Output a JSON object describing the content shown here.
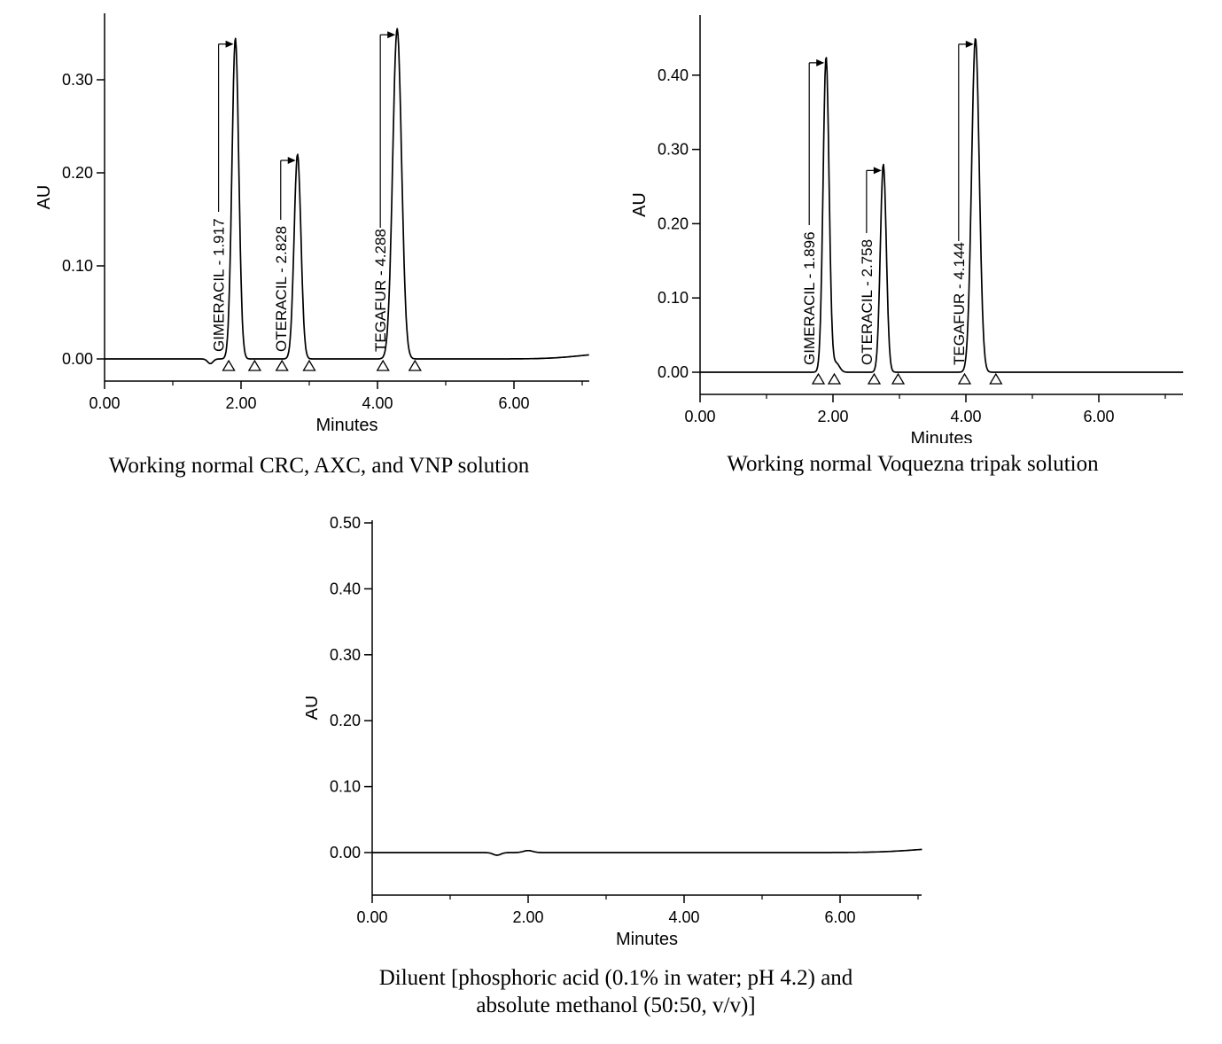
{
  "page": {
    "background": "#ffffff",
    "text_color": "#000000",
    "line_color": "#000000"
  },
  "chart_data": [
    {
      "type": "line",
      "subtype": "hplc-chromatogram",
      "caption": "Working normal CRC, AXC, and VNP solution",
      "xlabel": "Minutes",
      "ylabel": "AU",
      "xlim": [
        0,
        7.1
      ],
      "ylim": [
        -0.024,
        0.371
      ],
      "xticks": [
        0,
        2,
        4,
        6
      ],
      "yticks": [
        0,
        0.1,
        0.2,
        0.3
      ],
      "grid": false,
      "legend": "none",
      "baseline_au": 0,
      "line_color": "#000000",
      "peaks": [
        {
          "name": "",
          "retention_time_min": 1.55,
          "height_au": -0.005,
          "sigma_min": 0.04,
          "label": ""
        },
        {
          "name": "GIMERACIL",
          "retention_time_min": 1.917,
          "height_au": 0.345,
          "sigma_min": 0.05,
          "label": "GIMERACIL - 1.917"
        },
        {
          "name": "OTERACIL",
          "retention_time_min": 2.828,
          "height_au": 0.22,
          "sigma_min": 0.05,
          "label": "OTERACIL - 2.828"
        },
        {
          "name": "TEGAFUR",
          "retention_time_min": 4.288,
          "height_au": 0.355,
          "sigma_min": 0.065,
          "label": "TEGAFUR - 4.288"
        },
        {
          "name": "",
          "retention_time_min": 7.5,
          "height_au": 0.006,
          "sigma_min": 0.5,
          "label": ""
        }
      ],
      "integration_markers_min": [
        1.82,
        2.2,
        2.6,
        3.0,
        4.08,
        4.55
      ]
    },
    {
      "type": "line",
      "subtype": "hplc-chromatogram",
      "caption": "Working normal Voquezna tripak solution",
      "xlabel": "Minutes",
      "ylabel": "AU",
      "xlim": [
        0,
        7.27
      ],
      "ylim": [
        -0.03,
        0.481
      ],
      "xticks": [
        0,
        2,
        4,
        6
      ],
      "yticks": [
        0,
        0.1,
        0.2,
        0.3,
        0.4
      ],
      "grid": false,
      "legend": "none",
      "baseline_au": 0,
      "line_color": "#000000",
      "peaks": [
        {
          "name": "GIMERACIL",
          "retention_time_min": 1.896,
          "height_au": 0.425,
          "sigma_min": 0.045,
          "label": "GIMERACIL - 1.896"
        },
        {
          "name": "",
          "retention_time_min": 2.05,
          "height_au": 0.012,
          "sigma_min": 0.05,
          "label": ""
        },
        {
          "name": "OTERACIL",
          "retention_time_min": 2.758,
          "height_au": 0.28,
          "sigma_min": 0.045,
          "label": "OTERACIL - 2.758"
        },
        {
          "name": "TEGAFUR",
          "retention_time_min": 4.144,
          "height_au": 0.45,
          "sigma_min": 0.058,
          "label": "TEGAFUR - 4.144"
        }
      ],
      "integration_markers_min": [
        1.78,
        2.02,
        2.62,
        2.98,
        3.98,
        4.45
      ]
    },
    {
      "type": "line",
      "subtype": "hplc-chromatogram-blank",
      "caption_lines": [
        "Diluent [phosphoric acid (0.1% in water; pH 4.2) and",
        "absolute methanol (50:50, v/v)]"
      ],
      "xlabel": "Minutes",
      "ylabel": "AU",
      "xlim": [
        0,
        7.05
      ],
      "ylim": [
        -0.065,
        0.507
      ],
      "xticks": [
        0,
        2,
        4,
        6
      ],
      "yticks": [
        0,
        0.1,
        0.2,
        0.3,
        0.4,
        0.5
      ],
      "grid": false,
      "legend": "none",
      "baseline_au": 0,
      "line_color": "#000000",
      "peaks": [
        {
          "name": "",
          "retention_time_min": 1.6,
          "height_au": -0.004,
          "sigma_min": 0.05,
          "label": ""
        },
        {
          "name": "",
          "retention_time_min": 2.0,
          "height_au": 0.003,
          "sigma_min": 0.06,
          "label": ""
        },
        {
          "name": "",
          "retention_time_min": 7.6,
          "height_au": 0.008,
          "sigma_min": 0.55,
          "label": ""
        }
      ],
      "integration_markers_min": []
    }
  ]
}
